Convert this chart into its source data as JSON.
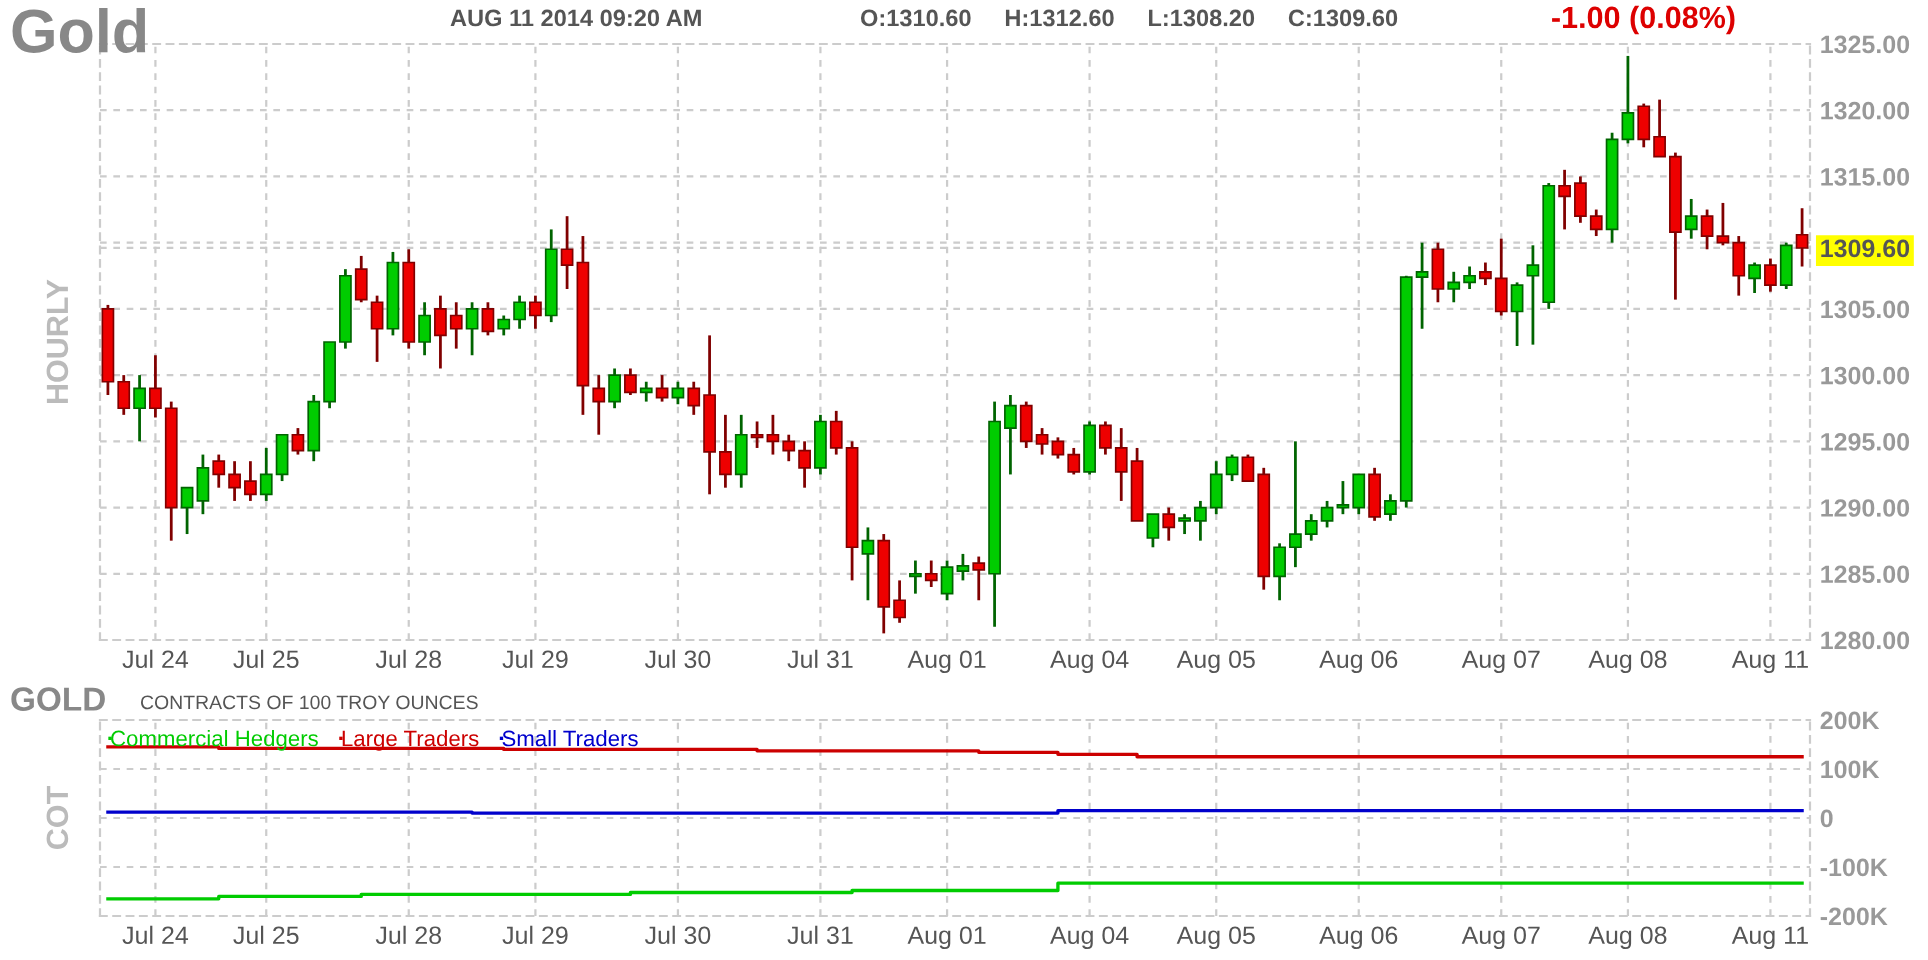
{
  "chart_data": [
    {
      "type": "candlestick",
      "title": "Gold",
      "ylabel": "HOURLY",
      "annotations": [
        "AUG 11 2014 09:20 AM",
        "O:1310.60     H:1312.60     L:1308.20     C:1309.60",
        "-1.00 (0.08%)"
      ],
      "categories": [
        null,
        null,
        null,
        "Jul 24",
        null,
        null,
        null,
        null,
        null,
        null,
        "Jul 25",
        null,
        null,
        null,
        null,
        null,
        null,
        null,
        null,
        "Jul 28",
        null,
        null,
        null,
        null,
        null,
        null,
        null,
        "Jul 29",
        null,
        null,
        null,
        null,
        null,
        null,
        null,
        null,
        "Jul 30",
        null,
        null,
        null,
        null,
        null,
        null,
        null,
        null,
        "Jul 31",
        null,
        null,
        null,
        null,
        null,
        null,
        null,
        "Aug 01",
        null,
        null,
        null,
        null,
        null,
        null,
        null,
        null,
        "Aug 04",
        null,
        null,
        null,
        null,
        null,
        null,
        null,
        "Aug 05",
        null,
        null,
        null,
        null,
        null,
        null,
        null,
        null,
        "Aug 06",
        null,
        null,
        null,
        null,
        null,
        null,
        null,
        null,
        "Aug 07",
        null,
        null,
        null,
        null,
        null,
        null,
        null,
        "Aug 08",
        null,
        null,
        null,
        null,
        null,
        null,
        null,
        null,
        "Aug 11",
        null,
        null
      ],
      "ohlc": [
        [
          1305,
          1305.3,
          1298.5,
          1299.5
        ],
        [
          1299.5,
          1300,
          1297,
          1297.5
        ],
        [
          1297.5,
          1300,
          1295,
          1299
        ],
        [
          1299,
          1301.5,
          1296.8,
          1297.5
        ],
        [
          1297.5,
          1298,
          1287.5,
          1290
        ],
        [
          1290,
          1291.5,
          1288,
          1291.5
        ],
        [
          1290.5,
          1294,
          1289.5,
          1293
        ],
        [
          1293.5,
          1294,
          1291.5,
          1292.5
        ],
        [
          1292.5,
          1293.5,
          1290.5,
          1291.5
        ],
        [
          1292,
          1293.5,
          1290.5,
          1291
        ],
        [
          1291,
          1294.5,
          1290.5,
          1292.5
        ],
        [
          1292.5,
          1295.5,
          1292,
          1295.5
        ],
        [
          1295.5,
          1296,
          1294,
          1294.3
        ],
        [
          1294.3,
          1298.5,
          1293.5,
          1298
        ],
        [
          1298,
          1302.5,
          1297.5,
          1302.5
        ],
        [
          1302.5,
          1308,
          1302,
          1307.5
        ],
        [
          1308,
          1309,
          1305.5,
          1305.7
        ],
        [
          1305.5,
          1306,
          1301,
          1303.5
        ],
        [
          1303.5,
          1309.3,
          1303,
          1308.5
        ],
        [
          1308.5,
          1309.5,
          1302,
          1302.5
        ],
        [
          1302.5,
          1305.5,
          1301.5,
          1304.5
        ],
        [
          1305,
          1306,
          1300.5,
          1303
        ],
        [
          1304.5,
          1305.5,
          1302,
          1303.5
        ],
        [
          1303.5,
          1305.5,
          1301.5,
          1305
        ],
        [
          1305,
          1305.5,
          1303,
          1303.3
        ],
        [
          1303.5,
          1304.5,
          1303,
          1304.2
        ],
        [
          1304.2,
          1306,
          1303.5,
          1305.5
        ],
        [
          1305.5,
          1306,
          1303.5,
          1304.5
        ],
        [
          1304.5,
          1311,
          1304,
          1309.5
        ],
        [
          1309.5,
          1312,
          1306.5,
          1308.3
        ],
        [
          1308.5,
          1310.5,
          1297,
          1299.2
        ],
        [
          1299,
          1300,
          1295.5,
          1298
        ],
        [
          1298,
          1300.5,
          1297.5,
          1300
        ],
        [
          1300,
          1300.5,
          1298.5,
          1298.7
        ],
        [
          1298.7,
          1299.5,
          1298,
          1299
        ],
        [
          1299,
          1300,
          1298,
          1298.3
        ],
        [
          1298.3,
          1299.5,
          1297.8,
          1299
        ],
        [
          1299,
          1299.5,
          1297,
          1297.7
        ],
        [
          1298.5,
          1303,
          1291,
          1294.2
        ],
        [
          1294.2,
          1297,
          1291.5,
          1292.5
        ],
        [
          1292.5,
          1297,
          1291.5,
          1295.5
        ],
        [
          1295.5,
          1296.5,
          1294.5,
          1295.3
        ],
        [
          1295.5,
          1297,
          1294,
          1295
        ],
        [
          1295,
          1295.5,
          1293.5,
          1294.3
        ],
        [
          1294.3,
          1295,
          1291.5,
          1293
        ],
        [
          1293,
          1297,
          1292.5,
          1296.5
        ],
        [
          1296.5,
          1297.3,
          1294,
          1294.5
        ],
        [
          1294.5,
          1295,
          1284.5,
          1287
        ],
        [
          1286.5,
          1288.5,
          1283,
          1287.5
        ],
        [
          1287.5,
          1288,
          1280.5,
          1282.5
        ],
        [
          1283,
          1284.5,
          1281.3,
          1281.7
        ],
        [
          1284.8,
          1286,
          1283.5,
          1285
        ],
        [
          1285,
          1286,
          1284,
          1284.5
        ],
        [
          1283.5,
          1286,
          1283,
          1285.5
        ],
        [
          1285.2,
          1286.5,
          1284.5,
          1285.6
        ],
        [
          1285.8,
          1286.3,
          1283,
          1285.3
        ],
        [
          1285,
          1298,
          1281,
          1296.5
        ],
        [
          1296,
          1298.5,
          1292.5,
          1297.7
        ],
        [
          1297.7,
          1298,
          1294.5,
          1295
        ],
        [
          1295.5,
          1296,
          1294,
          1294.8
        ],
        [
          1295,
          1295.3,
          1293.7,
          1294
        ],
        [
          1294,
          1294.5,
          1292.5,
          1292.7
        ],
        [
          1292.7,
          1296.5,
          1292.5,
          1296.2
        ],
        [
          1296.2,
          1296.5,
          1294,
          1294.5
        ],
        [
          1294.5,
          1296,
          1290.5,
          1292.7
        ],
        [
          1293.5,
          1294.5,
          1289,
          1289
        ],
        [
          1287.7,
          1289.5,
          1287,
          1289.5
        ],
        [
          1289.5,
          1290,
          1287.5,
          1288.5
        ],
        [
          1289,
          1289.5,
          1288,
          1289.2
        ],
        [
          1289,
          1290.5,
          1287.5,
          1290
        ],
        [
          1290,
          1293.5,
          1289.5,
          1292.5
        ],
        [
          1292.5,
          1294,
          1292,
          1293.8
        ],
        [
          1293.8,
          1294,
          1292,
          1292
        ],
        [
          1292.5,
          1293,
          1283.8,
          1284.8
        ],
        [
          1284.8,
          1287.3,
          1283,
          1287
        ],
        [
          1287,
          1295,
          1285.5,
          1288
        ],
        [
          1288,
          1289.5,
          1287.5,
          1289
        ],
        [
          1289,
          1290.5,
          1288.5,
          1290
        ],
        [
          1290,
          1292,
          1289.5,
          1290.2
        ],
        [
          1290,
          1292.5,
          1289.5,
          1292.5
        ],
        [
          1292.5,
          1293,
          1289,
          1289.3
        ],
        [
          1289.5,
          1291,
          1289,
          1290.5
        ],
        [
          1290.5,
          1307.5,
          1290,
          1307.4
        ],
        [
          1307.4,
          1310,
          1303.5,
          1307.8
        ],
        [
          1309.5,
          1310,
          1305.5,
          1306.5
        ],
        [
          1306.5,
          1307.8,
          1305.5,
          1307
        ],
        [
          1307,
          1308.2,
          1306.5,
          1307.5
        ],
        [
          1307.8,
          1308.5,
          1306.8,
          1307.3
        ],
        [
          1307.3,
          1310.3,
          1304.5,
          1304.8
        ],
        [
          1304.8,
          1307,
          1302.2,
          1306.8
        ],
        [
          1307.5,
          1309.8,
          1302.3,
          1308.3
        ],
        [
          1305.5,
          1314.5,
          1305,
          1314.3
        ],
        [
          1314.3,
          1315.5,
          1311,
          1313.5
        ],
        [
          1314.5,
          1315,
          1311.5,
          1312
        ],
        [
          1312,
          1312.5,
          1310.5,
          1311
        ],
        [
          1311,
          1318.3,
          1310,
          1317.8
        ],
        [
          1317.8,
          1324.1,
          1317.5,
          1319.8
        ],
        [
          1320.3,
          1320.5,
          1317.2,
          1317.8
        ],
        [
          1318,
          1320.8,
          1316.5,
          1316.5
        ],
        [
          1316.5,
          1316.8,
          1305.7,
          1310.8
        ],
        [
          1311,
          1313.3,
          1310.3,
          1312
        ],
        [
          1312,
          1312.5,
          1309.5,
          1310.5
        ],
        [
          1310.5,
          1313,
          1309.8,
          1310
        ],
        [
          1310,
          1310.5,
          1306,
          1307.5
        ],
        [
          1307.3,
          1308.5,
          1306.2,
          1308.3
        ],
        [
          1308.3,
          1308.8,
          1306.3,
          1306.8
        ],
        [
          1306.8,
          1310,
          1306.5,
          1309.8
        ],
        [
          1310.6,
          1312.6,
          1308.2,
          1309.6
        ]
      ],
      "ylim": [
        1280,
        1325
      ],
      "yticks": [
        {
          "value": 1280,
          "label": "1280.00"
        },
        {
          "value": 1285,
          "label": "1285.00"
        },
        {
          "value": 1290,
          "label": "1290.00"
        },
        {
          "value": 1295,
          "label": "1295.00"
        },
        {
          "value": 1300,
          "label": "1300.00"
        },
        {
          "value": 1305,
          "label": "1305.00"
        },
        {
          "value": 1310,
          "label": null
        },
        {
          "value": 1315,
          "label": "1315.00"
        },
        {
          "value": 1320,
          "label": "1320.00"
        },
        {
          "value": 1325,
          "label": "1325.00"
        },
        {
          "value": 1309.6,
          "label": "1309.60"
        }
      ],
      "grid": true
    },
    {
      "type": "step",
      "title": "GOLD",
      "subtitle": "CONTRACTS OF 100 TROY OUNCES",
      "ylabel": "COT",
      "categories": [
        null,
        null,
        null,
        "Jul 24",
        null,
        null,
        null,
        null,
        null,
        null,
        "Jul 25",
        null,
        null,
        null,
        null,
        null,
        null,
        null,
        null,
        "Jul 28",
        null,
        null,
        null,
        null,
        null,
        null,
        null,
        "Jul 29",
        null,
        null,
        null,
        null,
        null,
        null,
        null,
        null,
        "Jul 30",
        null,
        null,
        null,
        null,
        null,
        null,
        null,
        null,
        "Jul 31",
        null,
        null,
        null,
        null,
        null,
        null,
        null,
        "Aug 01",
        null,
        null,
        null,
        null,
        null,
        null,
        null,
        null,
        "Aug 04",
        null,
        null,
        null,
        null,
        null,
        null,
        null,
        "Aug 05",
        null,
        null,
        null,
        null,
        null,
        null,
        null,
        null,
        "Aug 06",
        null,
        null,
        null,
        null,
        null,
        null,
        null,
        null,
        "Aug 07",
        null,
        null,
        null,
        null,
        null,
        null,
        null,
        "Aug 08",
        null,
        null,
        null,
        null,
        null,
        null,
        null,
        null,
        "Aug 11",
        null,
        null
      ],
      "series": [
        {
          "name": "Commercial Hedgers",
          "color": "#00cc00",
          "values": [
            -165000,
            -165000,
            -165000,
            -165000,
            -165000,
            -165000,
            -165000,
            -160000,
            -160000,
            -160000,
            -160000,
            -160000,
            -160000,
            -160000,
            -160000,
            -160000,
            -156000,
            -156000,
            -156000,
            -156000,
            -156000,
            -156000,
            -156000,
            -156000,
            -156000,
            -156000,
            -156000,
            -156000,
            -156000,
            -156000,
            -156000,
            -156000,
            -156000,
            -152000,
            -152000,
            -152000,
            -152000,
            -152000,
            -152000,
            -152000,
            -152000,
            -152000,
            -152000,
            -152000,
            -152000,
            -152000,
            -152000,
            -148000,
            -148000,
            -148000,
            -148000,
            -148000,
            -148000,
            -148000,
            -148000,
            -148000,
            -148000,
            -148000,
            -148000,
            -148000,
            -133000,
            -133000,
            -133000,
            -133000,
            -133000,
            -133000,
            -133000,
            -133000,
            -133000,
            -133000,
            -133000,
            -133000,
            -133000,
            -133000,
            -133000,
            -133000,
            -133000,
            -133000,
            -133000,
            -133000,
            -133000,
            -133000,
            -133000,
            -133000,
            -133000,
            -133000,
            -133000,
            -133000,
            -133000,
            -133000,
            -133000,
            -133000,
            -133000,
            -133000,
            -133000,
            -133000,
            -133000,
            -133000,
            -133000,
            -133000,
            -133000,
            -133000,
            -133000,
            -133000,
            -133000,
            -133000,
            -133000,
            -133000
          ]
        },
        {
          "name": "Large Traders",
          "color": "#cc0000",
          "values": [
            145000,
            145000,
            145000,
            145000,
            145000,
            145000,
            145000,
            142000,
            142000,
            142000,
            142000,
            142000,
            142000,
            142000,
            142000,
            142000,
            142000,
            142000,
            142000,
            142000,
            142000,
            142000,
            142000,
            142000,
            142000,
            140000,
            140000,
            140000,
            140000,
            140000,
            140000,
            140000,
            140000,
            140000,
            140000,
            140000,
            140000,
            140000,
            140000,
            140000,
            140000,
            137000,
            137000,
            137000,
            137000,
            137000,
            137000,
            137000,
            137000,
            137000,
            137000,
            137000,
            137000,
            137000,
            137000,
            134000,
            134000,
            134000,
            134000,
            134000,
            130000,
            130000,
            130000,
            130000,
            130000,
            125000,
            125000,
            125000,
            125000,
            125000,
            125000,
            125000,
            125000,
            125000,
            125000,
            125000,
            125000,
            125000,
            125000,
            125000,
            125000,
            125000,
            125000,
            125000,
            125000,
            125000,
            125000,
            125000,
            125000,
            125000,
            125000,
            125000,
            125000,
            125000,
            125000,
            125000,
            125000,
            125000,
            125000,
            125000,
            125000,
            125000,
            125000,
            125000,
            125000,
            125000,
            125000,
            125000
          ]
        },
        {
          "name": "Small Traders",
          "color": "#0000cc",
          "values": [
            12000,
            12000,
            12000,
            12000,
            12000,
            12000,
            12000,
            12000,
            12000,
            12000,
            12000,
            12000,
            12000,
            12000,
            12000,
            12000,
            12000,
            12000,
            12000,
            12000,
            12000,
            12000,
            12000,
            10000,
            10000,
            10000,
            10000,
            10000,
            10000,
            10000,
            10000,
            10000,
            10000,
            10000,
            10000,
            10000,
            10000,
            10000,
            10000,
            10000,
            10000,
            10000,
            10000,
            10000,
            10000,
            10000,
            10000,
            10000,
            10000,
            10000,
            10000,
            10000,
            10000,
            10000,
            10000,
            10000,
            10000,
            10000,
            10000,
            10000,
            15000,
            15000,
            15000,
            15000,
            15000,
            15000,
            15000,
            15000,
            15000,
            15000,
            15000,
            15000,
            15000,
            15000,
            15000,
            15000,
            15000,
            15000,
            15000,
            15000,
            15000,
            15000,
            15000,
            15000,
            15000,
            15000,
            15000,
            15000,
            15000,
            15000,
            15000,
            15000,
            15000,
            15000,
            15000,
            15000,
            15000,
            15000,
            15000,
            15000,
            15000,
            15000,
            15000,
            15000,
            15000,
            15000,
            15000,
            15000
          ]
        }
      ],
      "ylim": [
        -200000,
        200000
      ],
      "yticks": [
        {
          "value": -200000,
          "label": "-200K"
        },
        {
          "value": -100000,
          "label": "-100K"
        },
        0,
        {
          "value": 100000,
          "label": "100K"
        },
        {
          "value": 200000,
          "label": "200K"
        }
      ],
      "grid": true,
      "legend": "top left"
    }
  ]
}
